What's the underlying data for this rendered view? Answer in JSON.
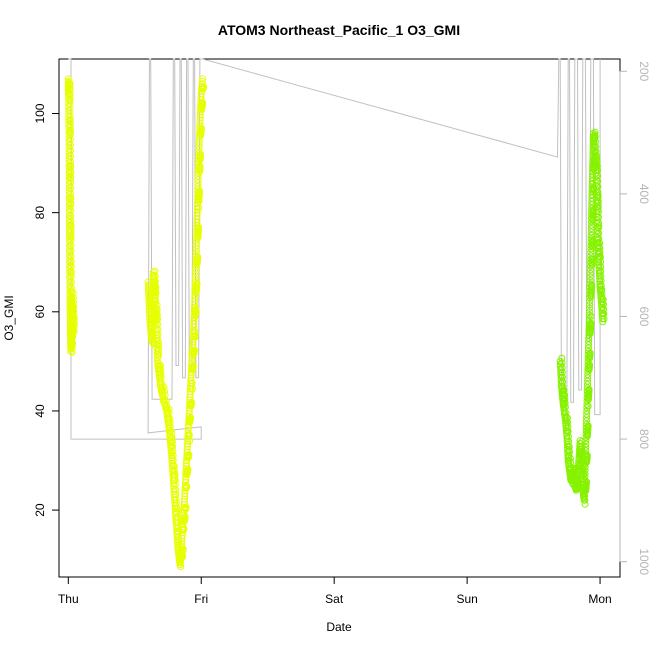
{
  "chart_data": {
    "type": "scatter",
    "title": "ATOM3 Northeast_Pacific_1 O3_GMI",
    "xlabel": "Date",
    "ylabel": "O3_GMI",
    "x_ticks": [
      "Thu",
      "Fri",
      "Sat",
      "Sun",
      "Mon"
    ],
    "y_ticks": [
      20,
      40,
      60,
      80,
      100
    ],
    "y_range": [
      6.5,
      111
    ],
    "y2_ticks": [
      200,
      400,
      600,
      800,
      1000
    ],
    "y2_range": [
      1025,
      180
    ],
    "y2_reversed": true,
    "x_range_days": [
      -0.07,
      4.15
    ],
    "grid": false,
    "legend": "none",
    "colors": {
      "yellow": "#e6ff00",
      "lime": "#86f200",
      "pressure_line": "#c0c0c0",
      "axis": "#000000"
    },
    "series": [
      {
        "values": [
          [
            0.0,
            104
          ],
          [
            0.0,
            107
          ],
          [
            0.005,
            95
          ],
          [
            0.008,
            80
          ],
          [
            0.01,
            70
          ],
          [
            0.013,
            62
          ],
          [
            0.015,
            58
          ],
          [
            0.018,
            52
          ],
          [
            0.02,
            55
          ],
          [
            0.025,
            63
          ],
          [
            0.03,
            60
          ],
          [
            0.035,
            56
          ],
          [
            0.6,
            66
          ],
          [
            0.61,
            60
          ],
          [
            0.62,
            56
          ],
          [
            0.63,
            54
          ],
          [
            0.64,
            68
          ],
          [
            0.65,
            62
          ],
          [
            0.66,
            58
          ],
          [
            0.67,
            50
          ],
          [
            0.68,
            48
          ],
          [
            0.69,
            46
          ],
          [
            0.7,
            44
          ],
          [
            0.72,
            42
          ],
          [
            0.74,
            40
          ],
          [
            0.75,
            38
          ],
          [
            0.76,
            36
          ],
          [
            0.77,
            33
          ],
          [
            0.78,
            30
          ],
          [
            0.79,
            26
          ],
          [
            0.8,
            22
          ],
          [
            0.81,
            18
          ],
          [
            0.82,
            14
          ],
          [
            0.83,
            11
          ],
          [
            0.84,
            9
          ],
          [
            0.85,
            12
          ],
          [
            0.86,
            16
          ],
          [
            0.87,
            20
          ],
          [
            0.88,
            25
          ],
          [
            0.89,
            30
          ],
          [
            0.9,
            35
          ],
          [
            0.91,
            40
          ],
          [
            0.92,
            45
          ],
          [
            0.93,
            50
          ],
          [
            0.94,
            55
          ],
          [
            0.95,
            62
          ],
          [
            0.96,
            70
          ],
          [
            0.97,
            80
          ],
          [
            0.98,
            90
          ],
          [
            0.99,
            98
          ],
          [
            1.0,
            104
          ],
          [
            1.01,
            107
          ]
        ],
        "color": "#e6ff00"
      },
      {
        "values": [
          [
            3.7,
            50
          ],
          [
            3.71,
            45
          ],
          [
            3.72,
            42
          ],
          [
            3.73,
            40
          ],
          [
            3.74,
            38
          ],
          [
            3.75,
            35
          ],
          [
            3.76,
            30
          ],
          [
            3.77,
            28
          ],
          [
            3.78,
            26
          ],
          [
            3.79,
            27
          ],
          [
            3.8,
            28
          ],
          [
            3.81,
            25
          ],
          [
            3.82,
            24
          ],
          [
            3.83,
            26
          ],
          [
            3.84,
            30
          ],
          [
            3.85,
            34
          ],
          [
            3.86,
            28
          ],
          [
            3.87,
            24
          ],
          [
            3.88,
            22
          ],
          [
            3.89,
            30
          ],
          [
            3.9,
            40
          ],
          [
            3.91,
            50
          ],
          [
            3.92,
            60
          ],
          [
            3.93,
            72
          ],
          [
            3.94,
            85
          ],
          [
            3.95,
            96
          ],
          [
            3.96,
            92
          ],
          [
            3.97,
            88
          ],
          [
            3.98,
            75
          ],
          [
            3.99,
            70
          ],
          [
            4.0,
            65
          ],
          [
            4.01,
            62
          ],
          [
            4.02,
            58
          ]
        ],
        "color": "#86f200"
      }
    ]
  }
}
